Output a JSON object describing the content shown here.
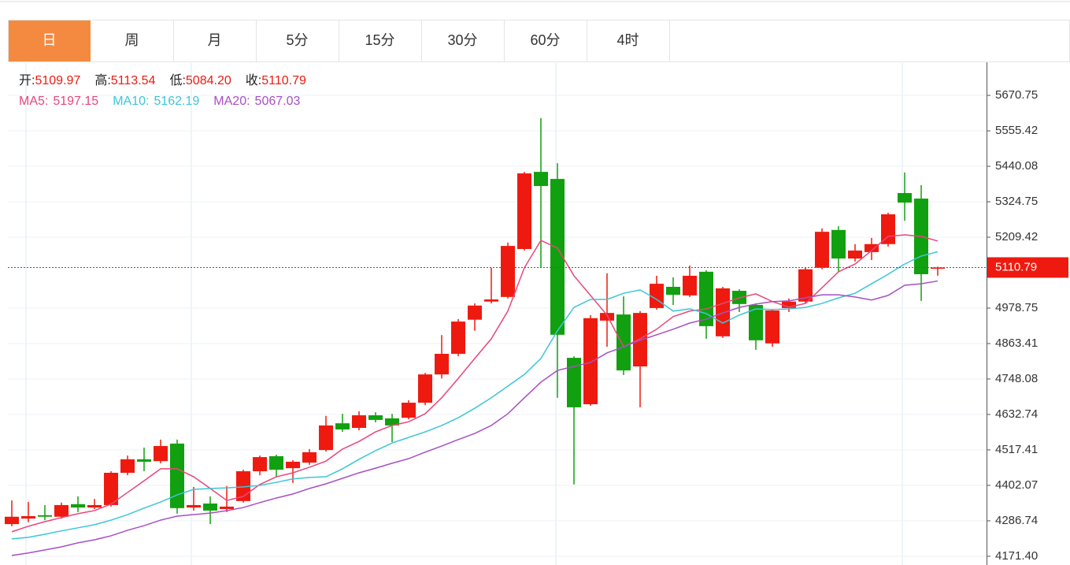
{
  "tabs": [
    "日",
    "周",
    "月",
    "5分",
    "15分",
    "30分",
    "60分",
    "4时"
  ],
  "active_tab": 0,
  "separator": ":",
  "header": [
    {
      "name": "开",
      "field": "open"
    },
    {
      "name": "高",
      "field": "high"
    },
    {
      "name": "低",
      "field": "low",
      "label": "5084.20"
    },
    {
      "name": "收",
      "field": "close"
    }
  ],
  "chart_data": {
    "type": "candlestick",
    "up_color": "#ee1a10",
    "down_color": "#11a00f",
    "open": [
      4276,
      4294,
      4305,
      4300,
      4341,
      4330,
      4338,
      4443,
      4487,
      4481,
      4538,
      4330,
      4343,
      4325,
      4351,
      4448,
      4497,
      4458,
      4476,
      4517,
      4604,
      4589,
      4630,
      4620,
      4622,
      4671,
      4763,
      4830,
      4941,
      5000,
      5015,
      5171,
      5422,
      5399,
      4817,
      4666,
      4938,
      4958,
      4789,
      4979,
      5048,
      5020,
      5097,
      4887,
      5035,
      4989,
      4864,
      4979,
      5000,
      5110,
      5233,
      5140,
      5161,
      5187,
      5353,
      5335,
      5109.97
    ],
    "high": [
      4353,
      4348,
      4338,
      4346,
      4366,
      4358,
      4448,
      4499,
      4525,
      4551,
      4551,
      4397,
      4366,
      4400,
      4453,
      4499,
      4502,
      4484,
      4520,
      4628,
      4635,
      4643,
      4640,
      4635,
      4679,
      4768,
      4891,
      4943,
      4994,
      5110,
      5192,
      5422,
      5597,
      5450,
      4822,
      4956,
      5092,
      5017,
      4969,
      5084,
      5079,
      5117,
      5102,
      5048,
      5040,
      4994,
      4976,
      5010,
      5110,
      5238,
      5245,
      5187,
      5207,
      5289,
      5420,
      5379,
      5113.54
    ],
    "low": [
      4269,
      4282,
      4289,
      4294,
      4315,
      4325,
      4333,
      4435,
      4448,
      4474,
      4310,
      4320,
      4276,
      4315,
      4346,
      4435,
      4428,
      4410,
      4469,
      4512,
      4576,
      4581,
      4607,
      4543,
      4617,
      4663,
      4750,
      4822,
      4905,
      4994,
      5010,
      5166,
      5110,
      4687,
      4405,
      4661,
      4853,
      4761,
      4656,
      4974,
      4989,
      5015,
      4879,
      4882,
      4966,
      4843,
      4853,
      4966,
      4994,
      5105,
      5097,
      5130,
      5135,
      5179,
      5263,
      5002,
      5084.2
    ],
    "close": [
      4300,
      4302,
      4300,
      4338,
      4330,
      4338,
      4443,
      4487,
      4479,
      4530,
      4328,
      4338,
      4320,
      4333,
      4448,
      4494,
      4453,
      4479,
      4510,
      4597,
      4584,
      4630,
      4615,
      4597,
      4671,
      4763,
      4830,
      4935,
      4987,
      5007,
      5181,
      5417,
      5376,
      4892,
      4656,
      4946,
      4963,
      4776,
      4963,
      5058,
      5022,
      5084,
      4920,
      5043,
      4992,
      4874,
      4971,
      5000,
      5105,
      5227,
      5140,
      5166,
      5187,
      5284,
      5322,
      5089,
      5110.79
    ],
    "series": [
      {
        "name": "MA5",
        "color": "#e8467c",
        "values": [
          4251,
          4269,
          4284,
          4297,
          4310,
          4320,
          4341,
          4379,
          4417,
          4456,
          4456,
          4430,
          4392,
          4353,
          4366,
          4405,
          4430,
          4443,
          4461,
          4481,
          4520,
          4545,
          4576,
          4597,
          4609,
          4635,
          4687,
          4750,
          4815,
          4879,
          4969,
          5110,
          5199,
          5174,
          5084,
          5020,
          4956,
          4853,
          4879,
          4910,
          4951,
          4969,
          4976,
          4994,
          5012,
          5025,
          5000,
          4982,
          4994,
          5045,
          5097,
          5122,
          5166,
          5212,
          5217,
          5212,
          5197.15
        ]
      },
      {
        "name": "MA10",
        "color": "#3cc6d6",
        "values": [
          4228,
          4233,
          4243,
          4254,
          4264,
          4274,
          4289,
          4307,
          4328,
          4348,
          4371,
          4389,
          4392,
          4394,
          4397,
          4402,
          4412,
          4423,
          4428,
          4430,
          4456,
          4487,
          4515,
          4540,
          4558,
          4576,
          4597,
          4622,
          4653,
          4687,
          4725,
          4763,
          4815,
          4905,
          4981,
          5007,
          5007,
          5027,
          5038,
          5007,
          4969,
          4976,
          4961,
          4930,
          4956,
          4976,
          4974,
          4976,
          4981,
          4994,
          5012,
          5027,
          5058,
          5089,
          5122,
          5148,
          5162.19
        ]
      },
      {
        "name": "MA20",
        "color": "#a74fc4",
        "values": [
          4174,
          4182,
          4192,
          4202,
          4215,
          4225,
          4238,
          4256,
          4271,
          4289,
          4302,
          4307,
          4312,
          4320,
          4330,
          4346,
          4361,
          4374,
          4392,
          4407,
          4425,
          4443,
          4458,
          4474,
          4489,
          4510,
          4530,
          4551,
          4571,
          4597,
          4635,
          4687,
          4738,
          4776,
          4789,
          4802,
          4833,
          4853,
          4874,
          4892,
          4910,
          4930,
          4943,
          4963,
          4981,
          4992,
          5000,
          5002,
          5012,
          5022,
          5022,
          5015,
          5005,
          5020,
          5053,
          5058,
          5067.03
        ]
      }
    ],
    "ylim": [
      4143,
      5776
    ],
    "yticks": [
      5670.75,
      5555.42,
      5440.08,
      5324.75,
      5209.42,
      4978.75,
      4863.41,
      4748.08,
      4632.74,
      4517.41,
      4402.07,
      4286.74,
      {
        "value": 4171.4,
        "label": "4171.40"
      }
    ],
    "grid": true
  }
}
